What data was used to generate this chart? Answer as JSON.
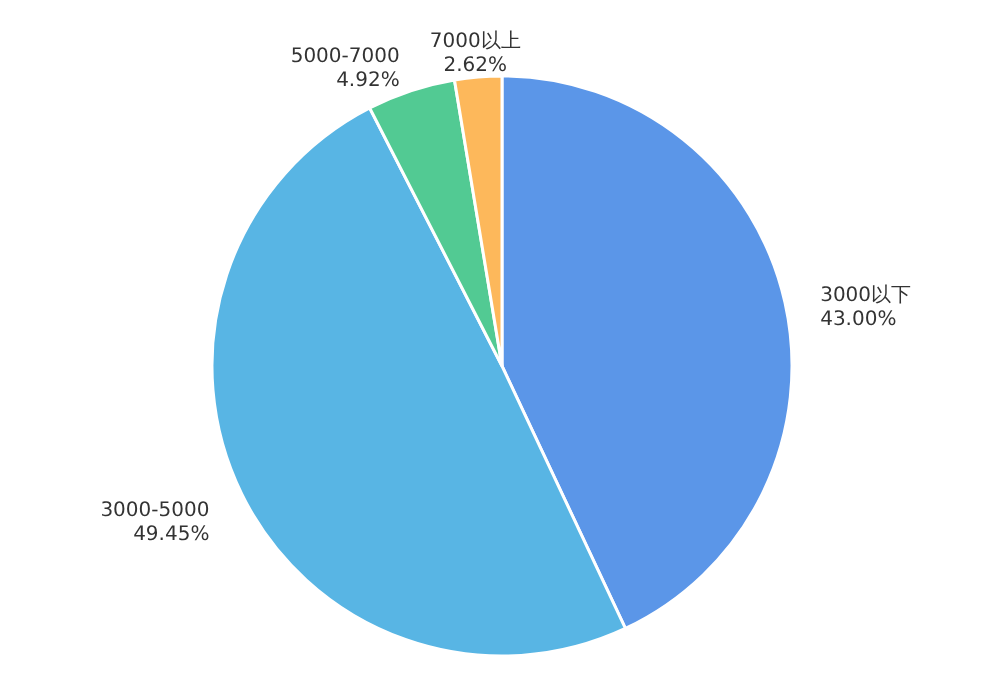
{
  "chart_data": {
    "type": "pie",
    "categories": [
      "3000以下",
      "3000-5000",
      "5000-7000",
      "7000以上"
    ],
    "values": [
      43.0,
      49.45,
      4.92,
      2.62
    ],
    "colors": [
      "#5b96e8",
      "#58b5e4",
      "#52ca93",
      "#fdb85b"
    ],
    "value_labels": [
      "43.00%",
      "49.45%",
      "4.92%",
      "2.62%"
    ]
  }
}
